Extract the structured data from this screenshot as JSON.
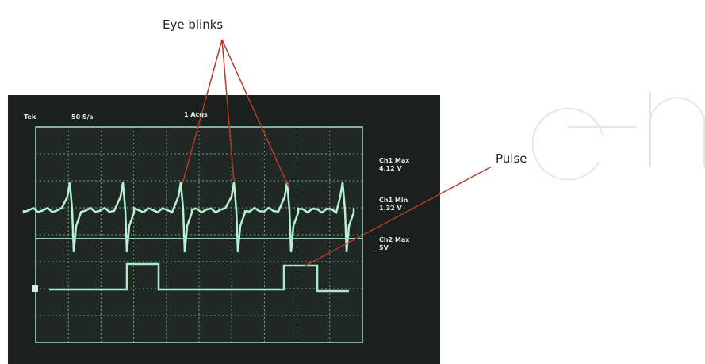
{
  "annotations": {
    "eye_blinks": "Eye blinks",
    "pulse": "Pulse"
  },
  "scope": {
    "header": {
      "brand": "Tek",
      "rate": "50 S/s",
      "acqs": "1 Acqs"
    },
    "readouts": [
      {
        "label": "Ch1 Max",
        "value": "4.12 V"
      },
      {
        "label": "Ch1 Min",
        "value": "1.32 V"
      },
      {
        "label": "Ch2 Max",
        "value": "5V"
      }
    ]
  }
}
